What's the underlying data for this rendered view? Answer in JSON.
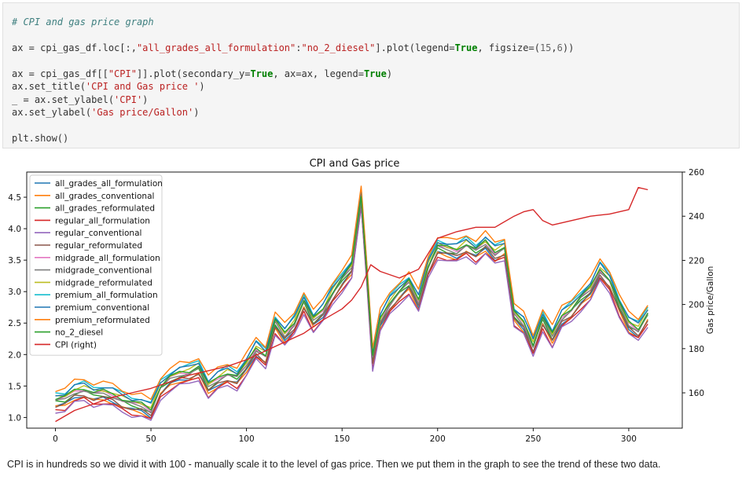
{
  "code": {
    "comment": "# CPI and gas price graph",
    "line1": {
      "a": "ax = cpi_gas_df.loc[:,",
      "s1": "\"all_grades_all_formulation\"",
      "b": ":",
      "s2": "\"no_2_diesel\"",
      "c": "].plot(legend=",
      "k1": "True",
      "d": ", figsize=(",
      "n1": "15",
      "e": ",",
      "n2": "6",
      "f": "))"
    },
    "line2": {
      "a": "ax = cpi_gas_df[[",
      "s1": "\"CPI\"",
      "b": "]].plot(secondary_y=",
      "k1": "True",
      "c": ", ax=ax, legend=",
      "k2": "True",
      "d": ")"
    },
    "line3": {
      "a": "ax.set_title(",
      "s1": "'CPI and Gas price '",
      "b": ")"
    },
    "line4": {
      "a": "_ = ax.set_ylabel(",
      "s1": "'CPI'",
      "b": ")"
    },
    "line5": {
      "a": "ax.set_ylabel(",
      "s1": "'Gas price/Gallon'",
      "b": ")"
    },
    "line6": "plt.show()"
  },
  "caption": "CPI is in hundreds so we divid it with 100 - manually scale it to the level of gas price. Then we put them in the graph to see the trend of these two data.",
  "chart_data": {
    "type": "line",
    "title": "CPI and Gas price",
    "xlabel": "",
    "ylabel": "",
    "y2label": "Gas price/Gallon",
    "xlim": [
      -15,
      328
    ],
    "ylim": [
      0.83,
      4.9
    ],
    "y2lim": [
      144,
      260
    ],
    "xticks": [
      0,
      50,
      100,
      150,
      200,
      250,
      300
    ],
    "yticks": [
      1.0,
      1.5,
      2.0,
      2.5,
      3.0,
      3.5,
      4.0,
      4.5
    ],
    "y2ticks": [
      160,
      180,
      200,
      220,
      240,
      260
    ],
    "grid": false,
    "legend_position": "top-left",
    "base_series": {
      "x": [
        0,
        5,
        10,
        15,
        20,
        25,
        30,
        35,
        40,
        45,
        50,
        55,
        60,
        65,
        70,
        75,
        80,
        85,
        90,
        95,
        100,
        105,
        110,
        115,
        120,
        125,
        130,
        135,
        140,
        145,
        150,
        155,
        160,
        163,
        166,
        170,
        175,
        180,
        185,
        190,
        195,
        200,
        205,
        210,
        215,
        220,
        225,
        230,
        235,
        240,
        245,
        250,
        255,
        260,
        265,
        270,
        275,
        280,
        285,
        290,
        295,
        300,
        305,
        310
      ],
      "y": [
        1.18,
        1.2,
        1.32,
        1.35,
        1.28,
        1.3,
        1.26,
        1.18,
        1.12,
        1.1,
        1.02,
        1.38,
        1.52,
        1.6,
        1.62,
        1.7,
        1.4,
        1.52,
        1.6,
        1.54,
        1.75,
        2.0,
        1.88,
        2.42,
        2.22,
        2.4,
        2.75,
        2.45,
        2.6,
        2.88,
        3.1,
        3.3,
        4.4,
        3.2,
        1.85,
        2.45,
        2.72,
        2.9,
        3.05,
        2.75,
        3.3,
        3.62,
        3.58,
        3.55,
        3.65,
        3.55,
        3.68,
        3.52,
        3.6,
        2.55,
        2.4,
        2.05,
        2.48,
        2.2,
        2.5,
        2.62,
        2.8,
        2.95,
        3.25,
        3.08,
        2.7,
        2.4,
        2.3,
        2.55
      ]
    },
    "series": [
      {
        "name": "all_grades_all_formulation",
        "color": "#1f77b4",
        "offset": 0.0
      },
      {
        "name": "all_grades_conventional",
        "color": "#ff7f0e",
        "offset": -0.02
      },
      {
        "name": "all_grades_reformulated",
        "color": "#2ca02c",
        "offset": 0.06
      },
      {
        "name": "regular_all_formulation",
        "color": "#d62728",
        "offset": -0.06
      },
      {
        "name": "regular_conventional",
        "color": "#9467bd",
        "offset": -0.09
      },
      {
        "name": "regular_reformulated",
        "color": "#8c564b",
        "offset": 0.01
      },
      {
        "name": "midgrade_all_formulation",
        "color": "#e377c2",
        "offset": 0.1
      },
      {
        "name": "midgrade_conventional",
        "color": "#7f7f7f",
        "offset": 0.08
      },
      {
        "name": "midgrade_reformulated",
        "color": "#bcbd22",
        "offset": 0.14
      },
      {
        "name": "premium_all_formulation",
        "color": "#17becf",
        "offset": 0.2
      },
      {
        "name": "premium_conventional",
        "color": "#1f77b4",
        "offset": 0.18
      },
      {
        "name": "premium_reformulated",
        "color": "#ff7f0e",
        "offset": 0.26
      },
      {
        "name": "no_2_diesel",
        "color": "#2ca02c",
        "offset": 0.12
      }
    ],
    "cpi": {
      "name": "CPI (right)",
      "color": "#d62728",
      "x": [
        0,
        10,
        20,
        30,
        40,
        50,
        60,
        70,
        80,
        90,
        100,
        110,
        120,
        130,
        140,
        150,
        155,
        160,
        165,
        170,
        180,
        190,
        200,
        210,
        220,
        230,
        240,
        245,
        250,
        255,
        260,
        270,
        280,
        290,
        300,
        305,
        310
      ],
      "y": [
        147,
        152,
        155,
        158,
        160,
        162,
        165,
        168,
        170,
        172,
        175,
        179,
        183,
        187,
        193,
        198,
        202,
        208,
        218,
        215,
        212,
        216,
        230,
        233,
        235,
        235,
        240,
        242,
        243,
        238,
        236,
        238,
        240,
        241,
        243,
        253,
        252
      ]
    }
  }
}
